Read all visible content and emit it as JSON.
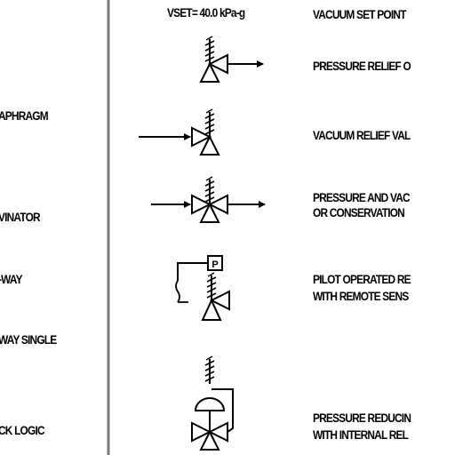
{
  "left_column": [
    "APHRAGM",
    "VINATOR",
    "-WAY",
    "WAY SINGLE",
    "CK LOGIC"
  ],
  "vset_label": "VSET= 40.0 kPa-g",
  "top_partial": "VACUUM SET POINT",
  "symbols": [
    {
      "lines": [
        "PRESSURE RELIEF O"
      ]
    },
    {
      "lines": [
        "VACUUM RELIEF VAL"
      ]
    },
    {
      "lines": [
        "PRESSURE AND  VAC",
        "OR CONSERVATION"
      ]
    },
    {
      "lines": [
        "PILOT OPERATED RE",
        "WITH REMOTE SENS"
      ]
    },
    {
      "lines": [
        "PRESSURE REDUCIN",
        "WITH INTERNAL REL"
      ]
    }
  ],
  "pilot_letter": "P",
  "colors": {
    "ink": "#000000",
    "divider": "#7a7a7a",
    "background": "#ffffff"
  }
}
